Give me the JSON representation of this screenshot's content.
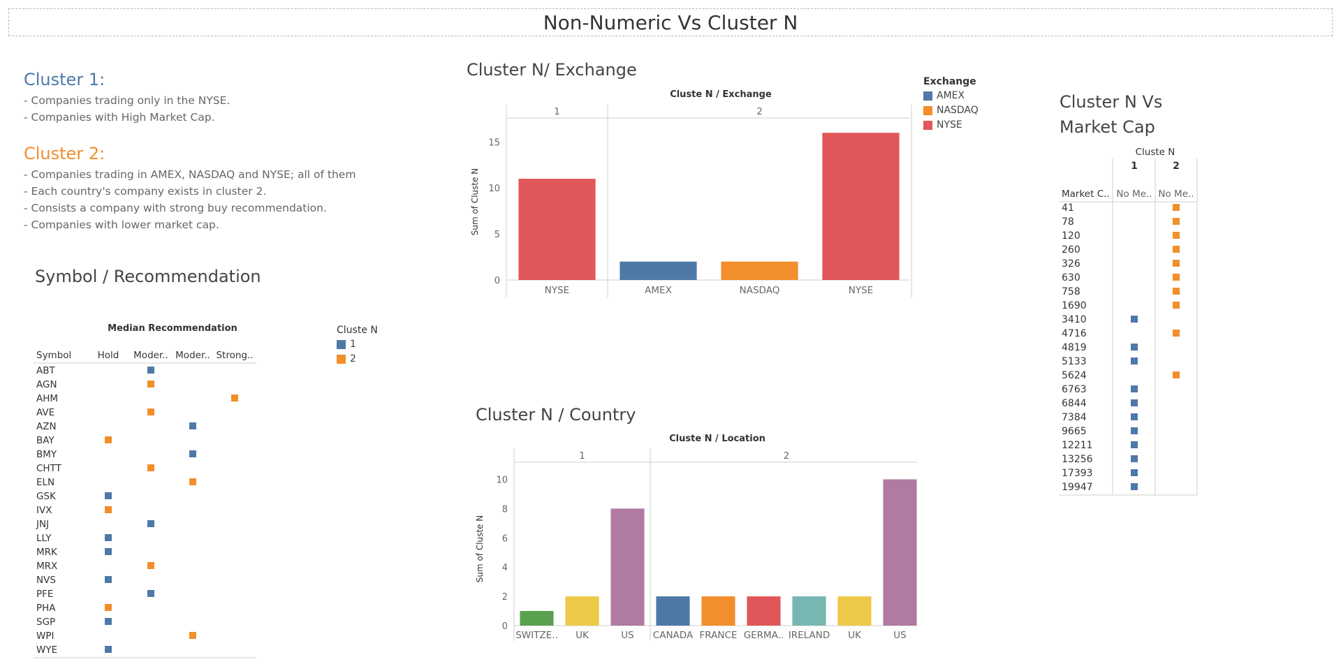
{
  "dashboard": {
    "title": "Non-Numeric Vs Cluster N"
  },
  "notes": {
    "cluster1": {
      "heading": "Cluster 1:",
      "lines": [
        "-  Companies trading only in the NYSE.",
        "-  Companies with High Market Cap."
      ]
    },
    "cluster2": {
      "heading": "Cluster 2:",
      "lines": [
        "- Companies trading in AMEX, NASDAQ and NYSE; all of them",
        "- Each country's company exists in cluster 2.",
        "- Consists a company with strong buy recommendation.",
        "-  Companies with lower market cap."
      ]
    }
  },
  "colors": {
    "cluster1": "#4e79a7",
    "cluster2": "#f28e2b",
    "title_c1": "#4e79a7",
    "title_c2": "#f28e2b",
    "amex": "#4e79a7",
    "nasdaq": "#f28e2b",
    "nyse": "#e15759",
    "switzerland": "#59a14f",
    "uk": "#edc948",
    "us": "#b07aa1",
    "canada": "#4e79a7",
    "france": "#f28e2b",
    "germany": "#e15759",
    "ireland": "#76b7b2"
  },
  "exchange_legend": {
    "title": "Exchange",
    "items": [
      {
        "label": "AMEX",
        "color": "#4e79a7"
      },
      {
        "label": "NASDAQ",
        "color": "#f28e2b"
      },
      {
        "label": "NYSE",
        "color": "#e15759"
      }
    ]
  },
  "cluster_legend": {
    "title": "Cluste N",
    "items": [
      {
        "label": "1",
        "color": "#4e79a7"
      },
      {
        "label": "2",
        "color": "#f28e2b"
      }
    ]
  },
  "chart_data": [
    {
      "id": "exchange",
      "type": "bar",
      "sheet_title": "Cluster N/ Exchange",
      "title": "Cluste N  /  Exchange",
      "ylabel": "Sum of Cluste N",
      "ylim": [
        0,
        17
      ],
      "yticks": [
        0,
        5,
        10,
        15
      ],
      "panels": [
        {
          "name": "1",
          "categories": [
            "NYSE"
          ],
          "values": [
            11
          ],
          "colors": [
            "#e15759"
          ]
        },
        {
          "name": "2",
          "categories": [
            "AMEX",
            "NASDAQ",
            "NYSE"
          ],
          "values": [
            2,
            2,
            16
          ],
          "colors": [
            "#4e79a7",
            "#f28e2b",
            "#e15759"
          ]
        }
      ]
    },
    {
      "id": "country",
      "type": "bar",
      "sheet_title": "Cluster N / Country",
      "title": "Cluste N  /  Location",
      "ylabel": "Sum of Cluste N",
      "ylim": [
        0,
        10.5
      ],
      "yticks": [
        0,
        2,
        4,
        6,
        8,
        10
      ],
      "panels": [
        {
          "name": "1",
          "categories": [
            "SWITZE..",
            "UK",
            "US"
          ],
          "values": [
            1,
            2,
            8
          ],
          "colors": [
            "#59a14f",
            "#edc948",
            "#b07aa1"
          ]
        },
        {
          "name": "2",
          "categories": [
            "CANADA",
            "FRANCE",
            "GERMA..",
            "IRELAND",
            "UK",
            "US"
          ],
          "values": [
            2,
            2,
            2,
            2,
            2,
            10
          ],
          "colors": [
            "#4e79a7",
            "#f28e2b",
            "#e15759",
            "#76b7b2",
            "#edc948",
            "#b07aa1"
          ]
        }
      ]
    },
    {
      "id": "recommendation",
      "type": "table",
      "sheet_title": "Symbol / Recommendation",
      "title": "Median Recommendation",
      "row_header": "Symbol",
      "columns": [
        "Hold",
        "Moder..",
        "Moder..",
        "Strong.."
      ],
      "rows": [
        {
          "symbol": "ABT",
          "col": 1,
          "cluster": 1
        },
        {
          "symbol": "AGN",
          "col": 1,
          "cluster": 2
        },
        {
          "symbol": "AHM",
          "col": 3,
          "cluster": 2
        },
        {
          "symbol": "AVE",
          "col": 1,
          "cluster": 2
        },
        {
          "symbol": "AZN",
          "col": 2,
          "cluster": 1
        },
        {
          "symbol": "BAY",
          "col": 0,
          "cluster": 2
        },
        {
          "symbol": "BMY",
          "col": 2,
          "cluster": 1
        },
        {
          "symbol": "CHTT",
          "col": 1,
          "cluster": 2
        },
        {
          "symbol": "ELN",
          "col": 2,
          "cluster": 2
        },
        {
          "symbol": "GSK",
          "col": 0,
          "cluster": 1
        },
        {
          "symbol": "IVX",
          "col": 0,
          "cluster": 2
        },
        {
          "symbol": "JNJ",
          "col": 1,
          "cluster": 1
        },
        {
          "symbol": "LLY",
          "col": 0,
          "cluster": 1
        },
        {
          "symbol": "MRK",
          "col": 0,
          "cluster": 1
        },
        {
          "symbol": "MRX",
          "col": 1,
          "cluster": 2
        },
        {
          "symbol": "NVS",
          "col": 0,
          "cluster": 1
        },
        {
          "symbol": "PFE",
          "col": 1,
          "cluster": 1
        },
        {
          "symbol": "PHA",
          "col": 0,
          "cluster": 2
        },
        {
          "symbol": "SGP",
          "col": 0,
          "cluster": 1
        },
        {
          "symbol": "WPI",
          "col": 2,
          "cluster": 2
        },
        {
          "symbol": "WYE",
          "col": 0,
          "cluster": 1
        }
      ]
    },
    {
      "id": "marketcap",
      "type": "table",
      "sheet_title_lines": [
        "Cluster N Vs",
        "Market Cap"
      ],
      "title": "Cluste N",
      "row_header": "Market C..",
      "columns": [
        "1",
        "2"
      ],
      "sub_header": "No Me..",
      "rows": [
        {
          "cap": "41",
          "cluster": 2
        },
        {
          "cap": "78",
          "cluster": 2
        },
        {
          "cap": "120",
          "cluster": 2
        },
        {
          "cap": "260",
          "cluster": 2
        },
        {
          "cap": "326",
          "cluster": 2
        },
        {
          "cap": "630",
          "cluster": 2
        },
        {
          "cap": "758",
          "cluster": 2
        },
        {
          "cap": "1690",
          "cluster": 2
        },
        {
          "cap": "3410",
          "cluster": 1
        },
        {
          "cap": "4716",
          "cluster": 2
        },
        {
          "cap": "4819",
          "cluster": 1
        },
        {
          "cap": "5133",
          "cluster": 1
        },
        {
          "cap": "5624",
          "cluster": 2
        },
        {
          "cap": "6763",
          "cluster": 1
        },
        {
          "cap": "6844",
          "cluster": 1
        },
        {
          "cap": "7384",
          "cluster": 1
        },
        {
          "cap": "9665",
          "cluster": 1
        },
        {
          "cap": "12211",
          "cluster": 1
        },
        {
          "cap": "13256",
          "cluster": 1
        },
        {
          "cap": "17393",
          "cluster": 1
        },
        {
          "cap": "19947",
          "cluster": 1
        }
      ]
    }
  ]
}
